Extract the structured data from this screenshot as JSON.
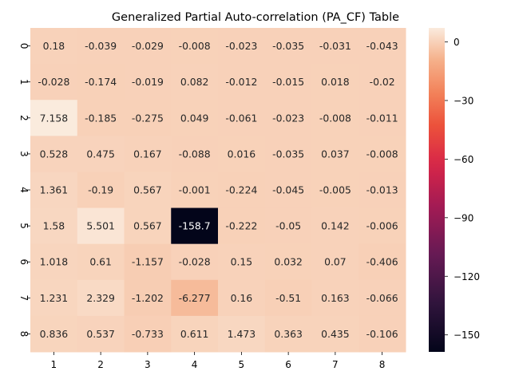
{
  "chart_data": {
    "type": "heatmap",
    "title": "Generalized Partial Auto-correlation (PA_CF) Table",
    "xlabel": "",
    "ylabel": "",
    "x_ticks": [
      "1",
      "2",
      "3",
      "4",
      "5",
      "6",
      "7",
      "8"
    ],
    "y_ticks": [
      "0",
      "1",
      "2",
      "3",
      "4",
      "5",
      "6",
      "7",
      "8"
    ],
    "cell_labels": [
      [
        "0.18",
        "-0.039",
        "-0.029",
        "-0.008",
        "-0.023",
        "-0.035",
        "-0.031",
        "-0.043"
      ],
      [
        "-0.028",
        "-0.174",
        "-0.019",
        "0.082",
        "-0.012",
        "-0.015",
        "0.018",
        "-0.02"
      ],
      [
        "7.158",
        "-0.185",
        "-0.275",
        "0.049",
        "-0.061",
        "-0.023",
        "-0.008",
        "-0.011"
      ],
      [
        "0.528",
        "0.475",
        "0.167",
        "-0.088",
        "0.016",
        "-0.035",
        "0.037",
        "-0.008"
      ],
      [
        "1.361",
        "-0.19",
        "0.567",
        "-0.001",
        "-0.224",
        "-0.045",
        "-0.005",
        "-0.013"
      ],
      [
        "1.58",
        "5.501",
        "0.567",
        "-158.7",
        "-0.222",
        "-0.05",
        "0.142",
        "-0.006"
      ],
      [
        "1.018",
        "0.61",
        "-1.157",
        "-0.028",
        "0.15",
        "0.032",
        "0.07",
        "-0.406"
      ],
      [
        "1.231",
        "2.329",
        "-1.202",
        "-6.277",
        "0.16",
        "-0.51",
        "0.163",
        "-0.066"
      ],
      [
        "0.836",
        "0.537",
        "-0.733",
        "0.611",
        "1.473",
        "0.363",
        "0.435",
        "-0.106"
      ]
    ],
    "values": [
      [
        0.18,
        -0.039,
        -0.029,
        -0.008,
        -0.023,
        -0.035,
        -0.031,
        -0.043
      ],
      [
        -0.028,
        -0.174,
        -0.019,
        0.082,
        -0.012,
        -0.015,
        0.018,
        -0.02
      ],
      [
        7.158,
        -0.185,
        -0.275,
        0.049,
        -0.061,
        -0.023,
        -0.008,
        -0.011
      ],
      [
        0.528,
        0.475,
        0.167,
        -0.088,
        0.016,
        -0.035,
        0.037,
        -0.008
      ],
      [
        1.361,
        -0.19,
        0.567,
        -0.001,
        -0.224,
        -0.045,
        -0.005,
        -0.013
      ],
      [
        1.58,
        5.501,
        0.567,
        -158.7,
        -0.222,
        -0.05,
        0.142,
        -0.006
      ],
      [
        1.018,
        0.61,
        -1.157,
        -0.028,
        0.15,
        0.032,
        0.07,
        -0.406
      ],
      [
        1.231,
        2.329,
        -1.202,
        -6.277,
        0.16,
        -0.51,
        0.163,
        -0.066
      ],
      [
        0.836,
        0.537,
        -0.733,
        0.611,
        1.473,
        0.363,
        0.435,
        -0.106
      ]
    ],
    "vmin": -158.7,
    "vmax": 7.158,
    "colormap": "rocket",
    "colorbar": {
      "ticks": [
        0,
        -30,
        -60,
        -90,
        -120,
        -150
      ],
      "tick_labels": [
        "0",
        "−30",
        "−60",
        "−90",
        "−120",
        "−150"
      ]
    },
    "grid": false,
    "legend": "colorbar-right"
  }
}
